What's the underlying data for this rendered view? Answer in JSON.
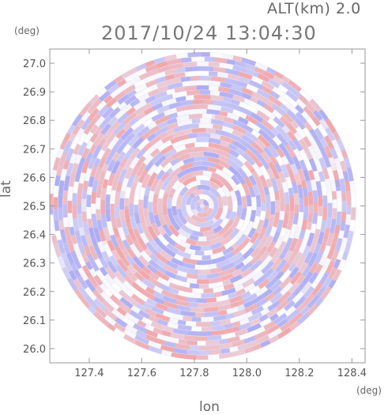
{
  "header": {
    "alt_label": "ALT(km) 2.0",
    "title": "2017/10/24 13:04:30"
  },
  "chart_data": {
    "type": "heatmap",
    "title": "2017/10/24 13:04:30",
    "subtitle": "ALT(km) 2.0",
    "xlabel": "lon",
    "ylabel": "lat",
    "x_unit": "(deg)",
    "y_unit": "(deg)",
    "xlim": [
      127.25,
      128.45
    ],
    "ylim": [
      25.95,
      27.05
    ],
    "x_ticks": [
      "127.4",
      "127.6",
      "127.8",
      "128.0",
      "128.2",
      "128.4"
    ],
    "x_tick_values": [
      127.4,
      127.6,
      127.8,
      128.0,
      128.2,
      128.4
    ],
    "y_ticks": [
      "26.0",
      "26.1",
      "26.2",
      "26.3",
      "26.4",
      "26.5",
      "26.6",
      "26.7",
      "26.8",
      "26.9",
      "27.0"
    ],
    "y_tick_values": [
      26.0,
      26.1,
      26.2,
      26.3,
      26.4,
      26.5,
      26.6,
      26.7,
      26.8,
      26.9,
      27.0
    ],
    "radar_center": {
      "lon": 127.83,
      "lat": 26.5
    },
    "radar_radius_lat_deg": 0.54,
    "colormap": {
      "positive": "#f3a0a0",
      "negative": "#a6a6f3",
      "zero": "#ffffff"
    },
    "grid": false,
    "legend": "none"
  }
}
